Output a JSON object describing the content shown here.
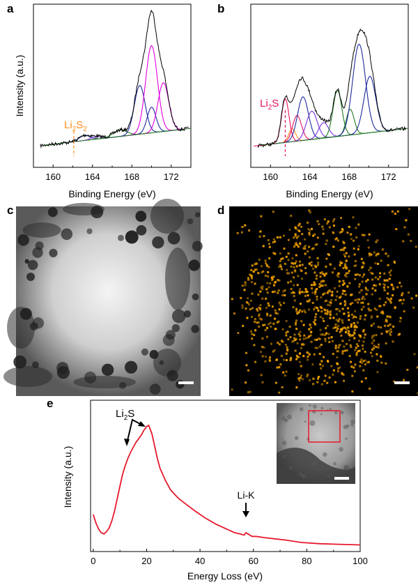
{
  "panels": {
    "a": "a",
    "b": "b",
    "c": "c",
    "d": "d",
    "e": "e"
  },
  "colors": {
    "envelope": "#000000",
    "magenta": "#e000e0",
    "navy": "#1c2a9c",
    "green": "#1f7a1f",
    "violet": "#7b2fe0",
    "orange": "#ff8c1a",
    "crimson": "#e8105f",
    "eds_orange": "#f5a400",
    "eels_red": "#e6192b",
    "roi_box": "#e6192b"
  },
  "chart_data": [
    {
      "id": "a",
      "type": "line",
      "xlabel": "Binding Energy (eV)",
      "ylabel": "Intensity (a.u.)",
      "xlim": [
        158,
        174
      ],
      "xticks": [
        "160",
        "164",
        "168",
        "172"
      ],
      "annotation": {
        "text": "Li",
        "sub1": "2",
        "mid": "S",
        "sub2": "2",
        "x": 162.1
      },
      "series": [
        {
          "kind": "envelope",
          "color_key": "envelope"
        },
        {
          "kind": "peak",
          "center": 163.2,
          "height": 0.04,
          "width": 0.55,
          "color_key": "navy"
        },
        {
          "kind": "peak",
          "center": 164.4,
          "height": 0.02,
          "width": 0.55,
          "color_key": "violet"
        },
        {
          "kind": "peak",
          "center": 166.8,
          "height": 0.05,
          "width": 0.7,
          "color_key": "green"
        },
        {
          "kind": "peak",
          "center": 168.8,
          "height": 0.38,
          "width": 0.55,
          "color_key": "navy"
        },
        {
          "kind": "peak",
          "center": 170.0,
          "height": 0.2,
          "width": 0.45,
          "color_key": "navy"
        },
        {
          "kind": "peak",
          "center": 170.0,
          "height": 0.68,
          "width": 0.6,
          "color_key": "magenta"
        },
        {
          "kind": "peak",
          "center": 171.2,
          "height": 0.38,
          "width": 0.55,
          "color_key": "magenta"
        }
      ]
    },
    {
      "id": "b",
      "type": "line",
      "xlabel": "Binding Energy (eV)",
      "ylabel": "",
      "xlim": [
        158,
        174
      ],
      "xticks": [
        "160",
        "164",
        "168",
        "172"
      ],
      "annotation": {
        "text": "Li",
        "sub1": "2",
        "mid": "S",
        "sub2": "",
        "x": 161.5
      },
      "series": [
        {
          "kind": "envelope",
          "color_key": "envelope"
        },
        {
          "kind": "peak",
          "center": 161.5,
          "height": 0.34,
          "width": 0.38,
          "color_key": "crimson"
        },
        {
          "kind": "peak",
          "center": 162.2,
          "height": 0.1,
          "width": 0.35,
          "color_key": "orange"
        },
        {
          "kind": "peak",
          "center": 162.7,
          "height": 0.2,
          "width": 0.45,
          "color_key": "crimson"
        },
        {
          "kind": "peak",
          "center": 163.3,
          "height": 0.34,
          "width": 0.55,
          "color_key": "navy"
        },
        {
          "kind": "peak",
          "center": 164.2,
          "height": 0.22,
          "width": 0.55,
          "color_key": "violet"
        },
        {
          "kind": "peak",
          "center": 165.4,
          "height": 0.12,
          "width": 0.5,
          "color_key": "violet"
        },
        {
          "kind": "peak",
          "center": 166.8,
          "height": 0.36,
          "width": 0.45,
          "color_key": "green"
        },
        {
          "kind": "peak",
          "center": 168.1,
          "height": 0.2,
          "width": 0.4,
          "color_key": "green"
        },
        {
          "kind": "peak",
          "center": 169.0,
          "height": 0.7,
          "width": 0.65,
          "color_key": "navy"
        },
        {
          "kind": "peak",
          "center": 170.1,
          "height": 0.44,
          "width": 0.6,
          "color_key": "navy"
        }
      ]
    },
    {
      "id": "e",
      "type": "line",
      "xlabel": "Energy Loss (eV)",
      "ylabel": "Intensity (a.u.)",
      "xlim": [
        -1,
        100
      ],
      "xticks": [
        "0",
        "20",
        "40",
        "60",
        "80",
        "100"
      ],
      "series": [
        {
          "name": "",
          "color_key": "eels_red",
          "x": [
            0,
            1,
            2,
            3,
            4,
            5,
            6,
            7,
            8,
            9,
            10,
            11,
            12,
            13,
            14,
            15,
            16,
            17,
            18,
            19,
            20,
            20.8,
            22,
            23,
            24,
            25,
            27,
            29,
            32,
            35,
            38,
            42,
            46,
            50,
            53,
            55,
            56.5,
            57.2,
            58,
            59.5,
            61,
            64,
            68,
            72,
            78,
            85,
            92,
            100
          ],
          "y": [
            0.27,
            0.2,
            0.15,
            0.12,
            0.11,
            0.13,
            0.16,
            0.22,
            0.3,
            0.4,
            0.5,
            0.6,
            0.67,
            0.73,
            0.78,
            0.82,
            0.86,
            0.89,
            0.92,
            0.96,
            0.99,
            1.0,
            0.93,
            0.83,
            0.73,
            0.65,
            0.55,
            0.47,
            0.4,
            0.35,
            0.3,
            0.24,
            0.19,
            0.15,
            0.12,
            0.11,
            0.1,
            0.12,
            0.11,
            0.09,
            0.09,
            0.08,
            0.07,
            0.06,
            0.04,
            0.03,
            0.025,
            0.02
          ]
        }
      ],
      "annotations": [
        {
          "text": "Li",
          "sub": "2",
          "mid": "S"
        },
        {
          "text": "Li-K"
        }
      ]
    }
  ]
}
